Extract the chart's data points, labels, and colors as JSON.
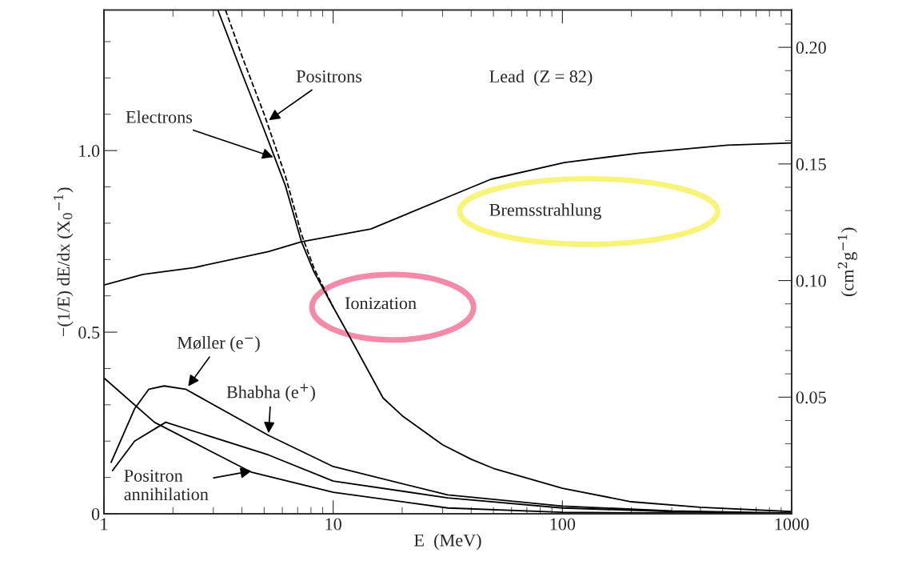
{
  "chart_data": {
    "type": "line",
    "xlabel": "E  (MeV)",
    "ylabel": "−(1/E) dE/dx (X$_{0}$$^{−1}$)",
    "y2label": "(cm$^{2}$g$^{−1}$)",
    "log": "x",
    "xlim": [
      1,
      1000
    ],
    "xticks": [
      1,
      10,
      100,
      1000
    ],
    "ylim": [
      0,
      1.387
    ],
    "yticks": [
      0,
      0.5,
      {
        "value": 1.0,
        "label": "1.0"
      }
    ],
    "y2lim": [
      0,
      0.216
    ],
    "y2ticks": [
      0.05,
      {
        "value": 0.1,
        "label": "0.10"
      },
      0.15,
      {
        "value": 0.2,
        "label": "0.20"
      }
    ],
    "grid": false,
    "legend": false,
    "series": [
      {
        "color": "#000000",
        "line_style": "solid",
        "x": [
          3.14,
          4,
          5,
          6.19,
          7.27,
          8.26,
          10,
          11.3,
          16.5,
          20,
          30,
          40,
          50,
          100,
          200,
          400,
          1000
        ],
        "values": [
          1.387,
          1.213,
          1.057,
          0.903,
          0.749,
          0.665,
          0.569,
          0.509,
          0.319,
          0.27,
          0.19,
          0.15,
          0.125,
          0.07,
          0.033,
          0.018,
          0.006
        ]
      },
      {
        "color": "#000000",
        "line_style": "dashed",
        "x": [
          3.39,
          4,
          5,
          6.19,
          7.27,
          8.26,
          10
        ],
        "values": [
          1.387,
          1.26,
          1.1,
          0.93,
          0.77,
          0.675,
          0.569
        ]
      },
      {
        "color": "#000000",
        "line_style": "solid",
        "x": [
          1,
          1.48,
          2.48,
          5.22,
          7.27,
          14.6,
          31.6,
          48.8,
          102,
          216,
          525,
          1000
        ],
        "values": [
          0.63,
          0.659,
          0.678,
          0.722,
          0.749,
          0.784,
          0.872,
          0.921,
          0.967,
          0.993,
          1.015,
          1.021
        ]
      },
      {
        "color": "#000000",
        "line_style": "solid",
        "x": [
          1.075,
          1.36,
          1.57,
          1.83,
          2.27,
          5.22,
          10,
          31.6,
          100,
          300,
          1000
        ],
        "values": [
          0.142,
          0.289,
          0.343,
          0.352,
          0.343,
          0.216,
          0.13,
          0.052,
          0.021,
          0.008,
          0.002
        ]
      },
      {
        "color": "#000000",
        "line_style": "solid",
        "x": [
          1.09,
          1.36,
          1.86,
          5.22,
          10,
          31.6,
          100,
          300,
          1000
        ],
        "values": [
          0.119,
          0.2,
          0.252,
          0.162,
          0.09,
          0.044,
          0.016,
          0.006,
          0.001
        ]
      },
      {
        "color": "#000000",
        "line_style": "solid",
        "x": [
          1,
          1.66,
          4.38,
          10,
          31.6,
          100,
          1000
        ],
        "values": [
          0.374,
          0.252,
          0.115,
          0.059,
          0.016,
          0.004,
          0.0
        ]
      }
    ],
    "annotations": [
      {
        "text": "Positrons",
        "x": 5.15,
        "y": 1.08
      },
      {
        "text": "Electrons",
        "x": 5.6,
        "y": 0.98
      },
      {
        "text": "Møller (e$^{−}$)",
        "x": 2.3,
        "y": 0.346
      },
      {
        "text": "Bhabha (e$^{+}$)",
        "x": 5.22,
        "y": 0.216
      },
      {
        "text": "Positron\nannihilation",
        "x": 4.5,
        "y": 0.119
      },
      "Lead  (Z = 82)",
      "Ionization",
      "Bremsstrahlung"
    ]
  }
}
